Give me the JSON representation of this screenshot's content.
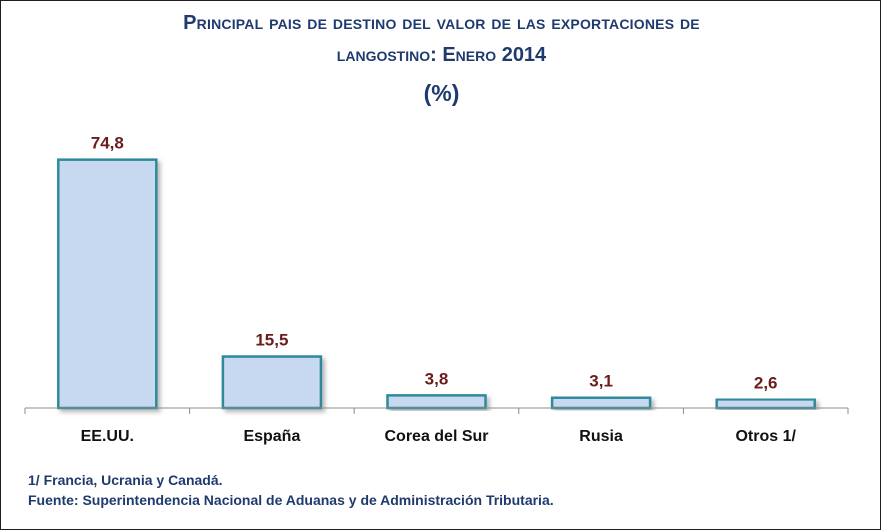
{
  "chart_data": {
    "type": "bar",
    "title_line1": "Principal pais de destino del valor de las exportaciones de",
    "title_line2": "langostino: Enero 2014",
    "title_line3": "(%)",
    "categories": [
      "EE.UU.",
      "España",
      "Corea del Sur",
      "Rusia",
      "Otros 1/"
    ],
    "values": [
      74.8,
      15.5,
      3.8,
      3.1,
      2.6
    ],
    "value_labels": [
      "74,8",
      "15,5",
      "3,8",
      "3,1",
      "2,6"
    ],
    "ylim": [
      0,
      75
    ],
    "grid": false,
    "legend": "none",
    "colors": {
      "bar_fill": "#c6d9f1",
      "bar_stroke": "#2e8a9a",
      "label": "#6b1d1d",
      "axis": "#8c8c8c",
      "text": "#1f3a6e"
    }
  },
  "notes": {
    "footnote": "1/ Francia, Ucrania y Canadá.",
    "source": "Fuente: Superintendencia Nacional de Aduanas y de Administración Tributaria."
  }
}
